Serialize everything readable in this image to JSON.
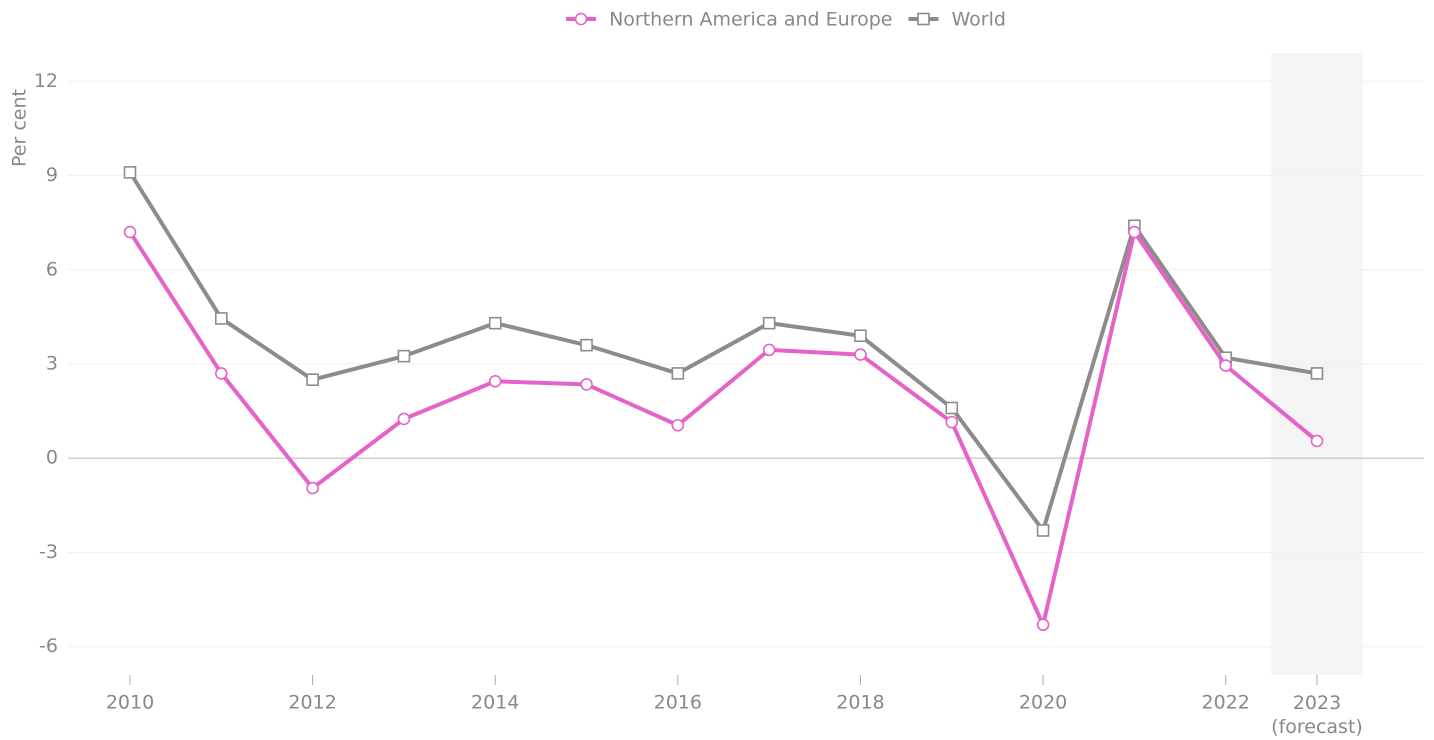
{
  "chart_data": {
    "type": "line",
    "ylabel": "Per cent",
    "categories": [
      "2010",
      null,
      "2012",
      null,
      "2014",
      null,
      "2016",
      null,
      "2018",
      null,
      "2020",
      null,
      "2022",
      "2023 (forecast)"
    ],
    "series": [
      {
        "name": "Northern America and Europe",
        "color": "#e563c9",
        "marker": "circle",
        "values": [
          7.2,
          2.7,
          -0.95,
          1.25,
          2.45,
          2.35,
          1.05,
          3.45,
          3.3,
          1.15,
          -5.3,
          7.2,
          2.95,
          0.55
        ]
      },
      {
        "name": "World",
        "color": "#8c8c8c",
        "marker": "square",
        "values": [
          9.1,
          4.45,
          2.5,
          3.25,
          4.3,
          3.6,
          2.7,
          4.3,
          3.9,
          1.6,
          -2.3,
          7.4,
          3.2,
          2.7
        ]
      }
    ],
    "ylim": [
      -6.9,
      12.9
    ],
    "yticks": [
      -6,
      -3,
      0,
      3,
      6,
      9,
      12
    ],
    "grid": true,
    "legend": "top"
  }
}
